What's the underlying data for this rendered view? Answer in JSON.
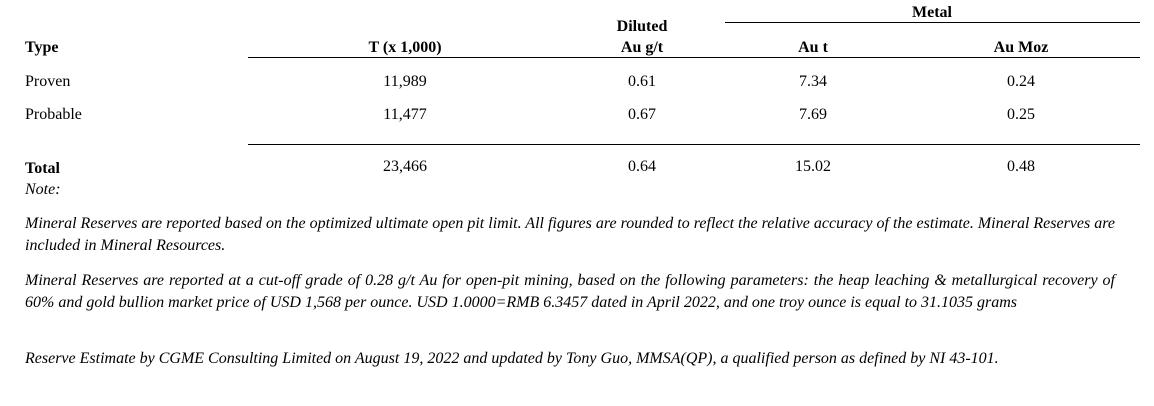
{
  "table": {
    "headers": {
      "group_metal": "Metal",
      "type": "Type",
      "tonnes": "T (x 1,000)",
      "grade_line1": "Diluted",
      "grade_line2": "Au g/t",
      "au_t": "Au t",
      "au_moz": "Au Moz"
    },
    "rows": [
      {
        "type": "Proven",
        "tonnes": "11,989",
        "grade": "0.61",
        "au_t": "7.34",
        "au_moz": "0.24"
      },
      {
        "type": "Probable",
        "tonnes": "11,477",
        "grade": "0.67",
        "au_t": "7.69",
        "au_moz": "0.25"
      }
    ],
    "total": {
      "type": "Total",
      "tonnes": "23,466",
      "grade": "0.64",
      "au_t": "15.02",
      "au_moz": "0.48"
    }
  },
  "notes": {
    "label": "Note:",
    "items": [
      "Mineral Reserves are reported based on the optimized ultimate open pit limit. All figures are rounded to reflect the relative accuracy of the estimate. Mineral Reserves are included in Mineral Resources.",
      "Mineral Reserves are reported at a cut-off grade of 0.28 g/t Au for open-pit mining, based on the following parameters: the heap leaching & metallurgical recovery of 60% and gold bullion market price of USD 1,568 per ounce. USD 1.0000=RMB 6.3457 dated in April 2022, and one troy ounce is equal to 31.1035 grams",
      "Reserve Estimate by CGME Consulting Limited on August 19, 2022 and updated by Tony Guo, MMSA(QP), a qualified person as defined by NI 43-101."
    ]
  }
}
